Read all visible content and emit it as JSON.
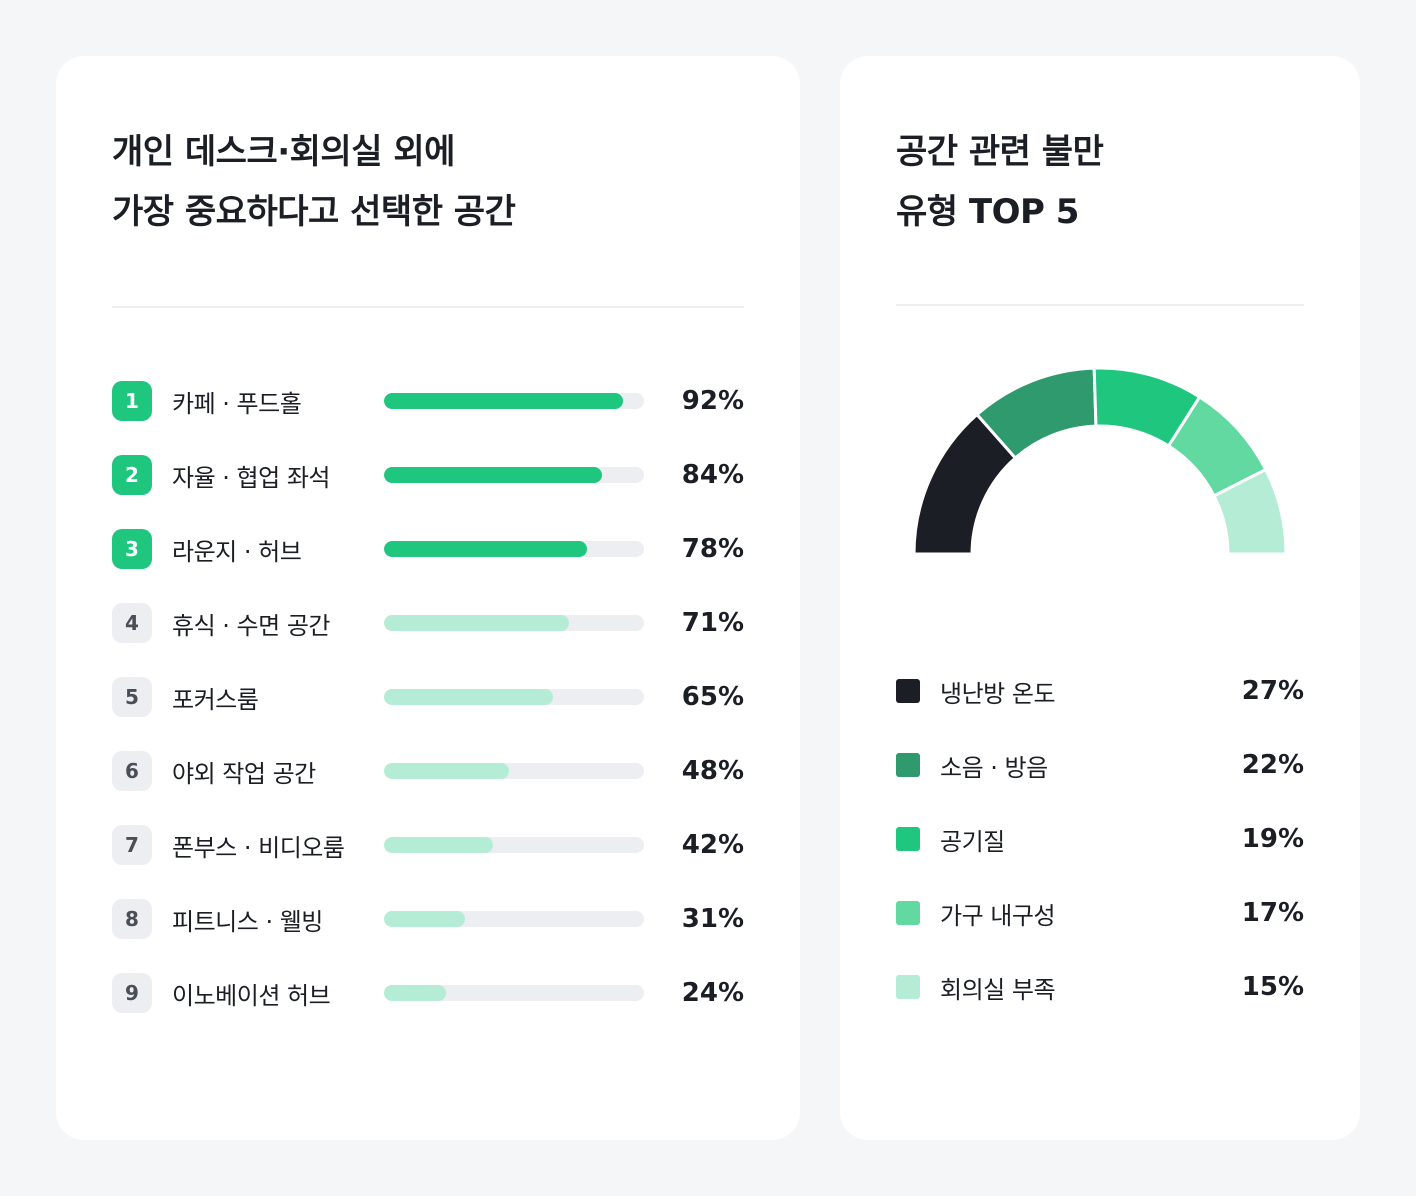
{
  "left_card": {
    "title_line1": "개인 데스크·회의실 외에",
    "title_line2": "가장 중요하다고 선택한 공간"
  },
  "right_card": {
    "title_line1": "공간 관련 불만",
    "title_line2": "유형 TOP 5"
  },
  "colors": {
    "bar_top": "#1fc67d",
    "bar_rest": "#b4ecd5",
    "track": "#eceef1",
    "donut": [
      "#1b1e24",
      "#2e9a6e",
      "#1fc67d",
      "#61d9a0",
      "#b4ecd5"
    ]
  },
  "chart_data": [
    {
      "type": "bar",
      "orientation": "horizontal",
      "title": "개인 데스크·회의실 외에 가장 중요하다고 선택한 공간",
      "ranks": [
        "1",
        "2",
        "3",
        "4",
        "5",
        "6",
        "7",
        "8",
        "9"
      ],
      "categories": [
        "카페 · 푸드홀",
        "자율 · 협업 좌석",
        "라운지 · 허브",
        "휴식 · 수면 공간",
        "포커스룸",
        "야외 작업 공간",
        "폰부스 · 비디오룸",
        "피트니스 · 웰빙",
        "이노베이션 허브"
      ],
      "values": [
        92,
        84,
        78,
        71,
        65,
        48,
        42,
        31,
        24
      ],
      "value_labels": [
        "92%",
        "84%",
        "78%",
        "71%",
        "65%",
        "48%",
        "42%",
        "31%",
        "24%"
      ],
      "xlim": [
        0,
        100
      ],
      "highlight_top": 3
    },
    {
      "type": "pie",
      "style": "half-donut",
      "title": "공간 관련 불만 유형 TOP 5",
      "categories": [
        "냉난방 온도",
        "소음 · 방음",
        "공기질",
        "가구 내구성",
        "회의실 부족"
      ],
      "values": [
        27,
        22,
        19,
        17,
        15
      ],
      "value_labels": [
        "27%",
        "22%",
        "19%",
        "17%",
        "15%"
      ]
    }
  ]
}
